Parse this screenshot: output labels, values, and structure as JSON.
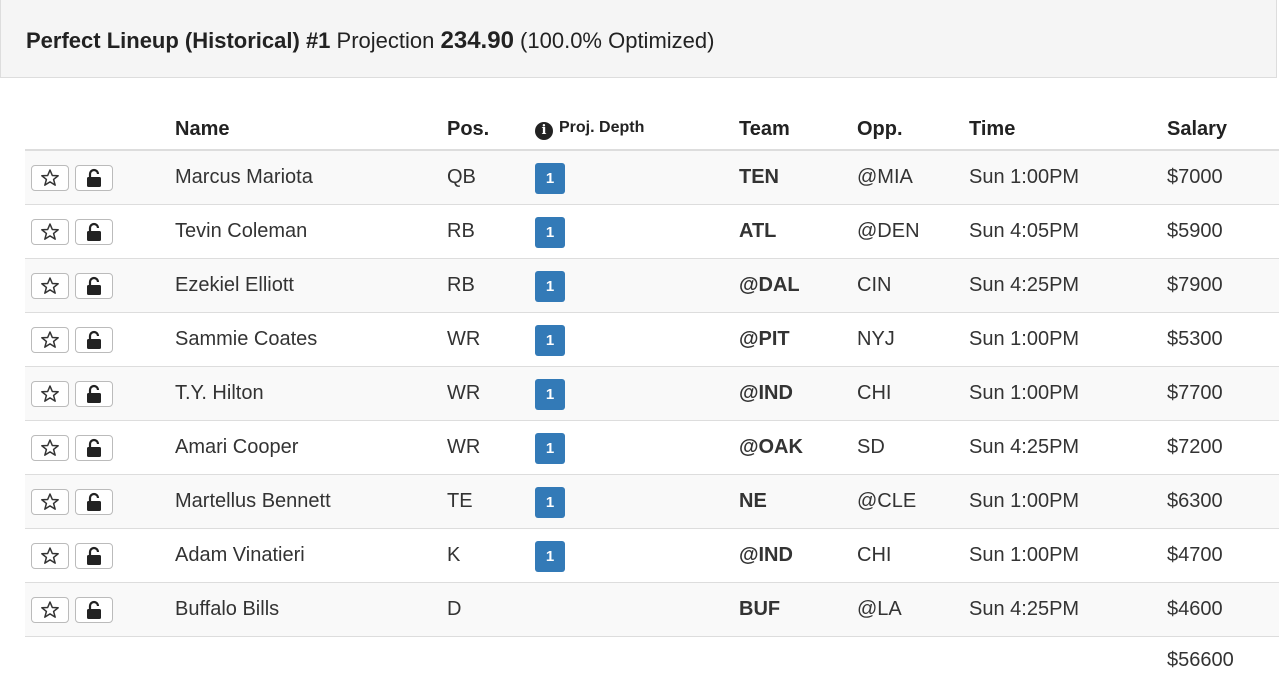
{
  "header": {
    "title": "Perfect Lineup (Historical) #1",
    "projection_label": "Projection",
    "projection_value": "234.90",
    "optimized": "(100.0% Optimized)"
  },
  "columns": {
    "name": "Name",
    "pos": "Pos.",
    "depth": "Proj. Depth",
    "team": "Team",
    "opp": "Opp.",
    "time": "Time",
    "salary": "Salary"
  },
  "players": [
    {
      "name": "Marcus Mariota",
      "pos": "QB",
      "depth": "1",
      "team": "TEN",
      "opp": "@MIA",
      "time": "Sun 1:00PM",
      "salary": "$7000"
    },
    {
      "name": "Tevin Coleman",
      "pos": "RB",
      "depth": "1",
      "team": "ATL",
      "opp": "@DEN",
      "time": "Sun 4:05PM",
      "salary": "$5900"
    },
    {
      "name": "Ezekiel Elliott",
      "pos": "RB",
      "depth": "1",
      "team": "@DAL",
      "opp": "CIN",
      "time": "Sun 4:25PM",
      "salary": "$7900"
    },
    {
      "name": "Sammie Coates",
      "pos": "WR",
      "depth": "1",
      "team": "@PIT",
      "opp": "NYJ",
      "time": "Sun 1:00PM",
      "salary": "$5300"
    },
    {
      "name": "T.Y. Hilton",
      "pos": "WR",
      "depth": "1",
      "team": "@IND",
      "opp": "CHI",
      "time": "Sun 1:00PM",
      "salary": "$7700"
    },
    {
      "name": "Amari Cooper",
      "pos": "WR",
      "depth": "1",
      "team": "@OAK",
      "opp": "SD",
      "time": "Sun 4:25PM",
      "salary": "$7200"
    },
    {
      "name": "Martellus Bennett",
      "pos": "TE",
      "depth": "1",
      "team": "NE",
      "opp": "@CLE",
      "time": "Sun 1:00PM",
      "salary": "$6300"
    },
    {
      "name": "Adam Vinatieri",
      "pos": "K",
      "depth": "1",
      "team": "@IND",
      "opp": "CHI",
      "time": "Sun 1:00PM",
      "salary": "$4700"
    },
    {
      "name": "Buffalo Bills",
      "pos": "D",
      "depth": "",
      "team": "BUF",
      "opp": "@LA",
      "time": "Sun 4:25PM",
      "salary": "$4600"
    }
  ],
  "total_salary": "$56600",
  "icons": {
    "star": "star-outline-icon",
    "lock": "unlock-icon",
    "info": "info-circle-icon"
  },
  "colors": {
    "badge": "#337ab7",
    "header_bg": "#f5f5f5"
  }
}
